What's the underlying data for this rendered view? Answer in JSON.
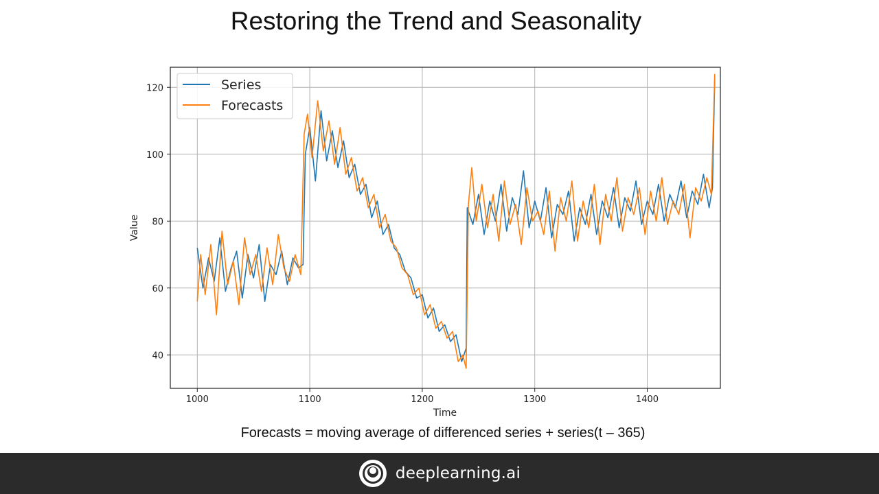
{
  "slide": {
    "title": "Restoring the Trend and Seasonality",
    "caption": "Forecasts = moving average of differenced series + series(t – 365)"
  },
  "footer": {
    "brand": "deeplearning.ai",
    "logo_icon": "deeplearning-logo-icon"
  },
  "chart_data": {
    "type": "line",
    "xlabel": "Time",
    "ylabel": "Value",
    "xlim": [
      976,
      1465
    ],
    "ylim": [
      30,
      126
    ],
    "x_ticks": [
      1000,
      1100,
      1200,
      1300,
      1400
    ],
    "y_ticks": [
      40,
      60,
      80,
      100,
      120
    ],
    "grid": true,
    "legend": "top-left",
    "series": [
      {
        "name": "Series",
        "color": "#1f77b4",
        "x": [
          1000,
          1005,
          1010,
          1015,
          1020,
          1025,
          1030,
          1035,
          1040,
          1045,
          1050,
          1055,
          1060,
          1065,
          1070,
          1075,
          1080,
          1085,
          1090,
          1094,
          1096,
          1100,
          1105,
          1110,
          1115,
          1120,
          1125,
          1130,
          1135,
          1140,
          1145,
          1150,
          1155,
          1160,
          1165,
          1170,
          1175,
          1180,
          1185,
          1190,
          1195,
          1200,
          1205,
          1210,
          1215,
          1220,
          1225,
          1230,
          1235,
          1239,
          1240,
          1245,
          1250,
          1255,
          1260,
          1265,
          1270,
          1275,
          1280,
          1285,
          1290,
          1295,
          1300,
          1305,
          1310,
          1315,
          1320,
          1325,
          1330,
          1335,
          1340,
          1345,
          1350,
          1355,
          1360,
          1365,
          1370,
          1375,
          1380,
          1385,
          1390,
          1395,
          1400,
          1405,
          1410,
          1415,
          1420,
          1425,
          1430,
          1435,
          1440,
          1445,
          1450,
          1455,
          1458,
          1460
        ],
        "values": [
          72,
          60,
          69,
          62,
          75,
          59,
          66,
          71,
          57,
          70,
          63,
          73,
          56,
          67,
          64,
          71,
          61,
          69,
          66,
          67,
          100,
          108,
          92,
          113,
          98,
          107,
          96,
          104,
          93,
          97,
          88,
          91,
          81,
          86,
          76,
          79,
          72,
          70,
          65,
          63,
          57,
          58,
          51,
          54,
          47,
          49,
          44,
          46,
          38,
          42,
          84,
          79,
          88,
          76,
          86,
          80,
          91,
          77,
          87,
          82,
          95,
          78,
          86,
          80,
          90,
          75,
          85,
          82,
          89,
          74,
          84,
          79,
          88,
          76,
          86,
          81,
          90,
          78,
          87,
          83,
          92,
          79,
          86,
          82,
          91,
          80,
          88,
          84,
          92,
          81,
          89,
          85,
          94,
          84,
          90,
          123
        ]
      },
      {
        "name": "Forecasts",
        "color": "#ff7f0e",
        "x": [
          1000,
          1003,
          1007,
          1012,
          1017,
          1022,
          1027,
          1032,
          1037,
          1042,
          1047,
          1052,
          1057,
          1062,
          1067,
          1072,
          1077,
          1082,
          1087,
          1092,
          1095,
          1098,
          1102,
          1107,
          1112,
          1117,
          1122,
          1127,
          1132,
          1137,
          1142,
          1147,
          1152,
          1157,
          1162,
          1167,
          1172,
          1177,
          1182,
          1187,
          1192,
          1197,
          1202,
          1207,
          1212,
          1217,
          1222,
          1227,
          1232,
          1236,
          1239,
          1241,
          1244,
          1248,
          1253,
          1258,
          1263,
          1268,
          1273,
          1278,
          1283,
          1288,
          1293,
          1298,
          1303,
          1308,
          1313,
          1318,
          1323,
          1328,
          1333,
          1338,
          1343,
          1348,
          1353,
          1358,
          1363,
          1368,
          1373,
          1378,
          1383,
          1388,
          1393,
          1398,
          1403,
          1408,
          1413,
          1418,
          1423,
          1428,
          1433,
          1438,
          1443,
          1448,
          1453,
          1457,
          1460
        ],
        "values": [
          56,
          70,
          58,
          73,
          52,
          77,
          61,
          68,
          55,
          75,
          64,
          70,
          59,
          72,
          61,
          76,
          66,
          62,
          70,
          64,
          106,
          112,
          99,
          116,
          101,
          110,
          97,
          108,
          94,
          99,
          89,
          93,
          84,
          88,
          78,
          82,
          74,
          72,
          66,
          64,
          58,
          60,
          52,
          55,
          48,
          50,
          45,
          47,
          38,
          40,
          36,
          85,
          96,
          80,
          91,
          78,
          88,
          74,
          92,
          79,
          85,
          73,
          90,
          80,
          83,
          76,
          89,
          71,
          87,
          80,
          92,
          74,
          86,
          78,
          91,
          73,
          88,
          80,
          93,
          77,
          87,
          82,
          90,
          76,
          89,
          80,
          93,
          79,
          86,
          82,
          91,
          75,
          90,
          86,
          93,
          88,
          124
        ]
      }
    ]
  }
}
